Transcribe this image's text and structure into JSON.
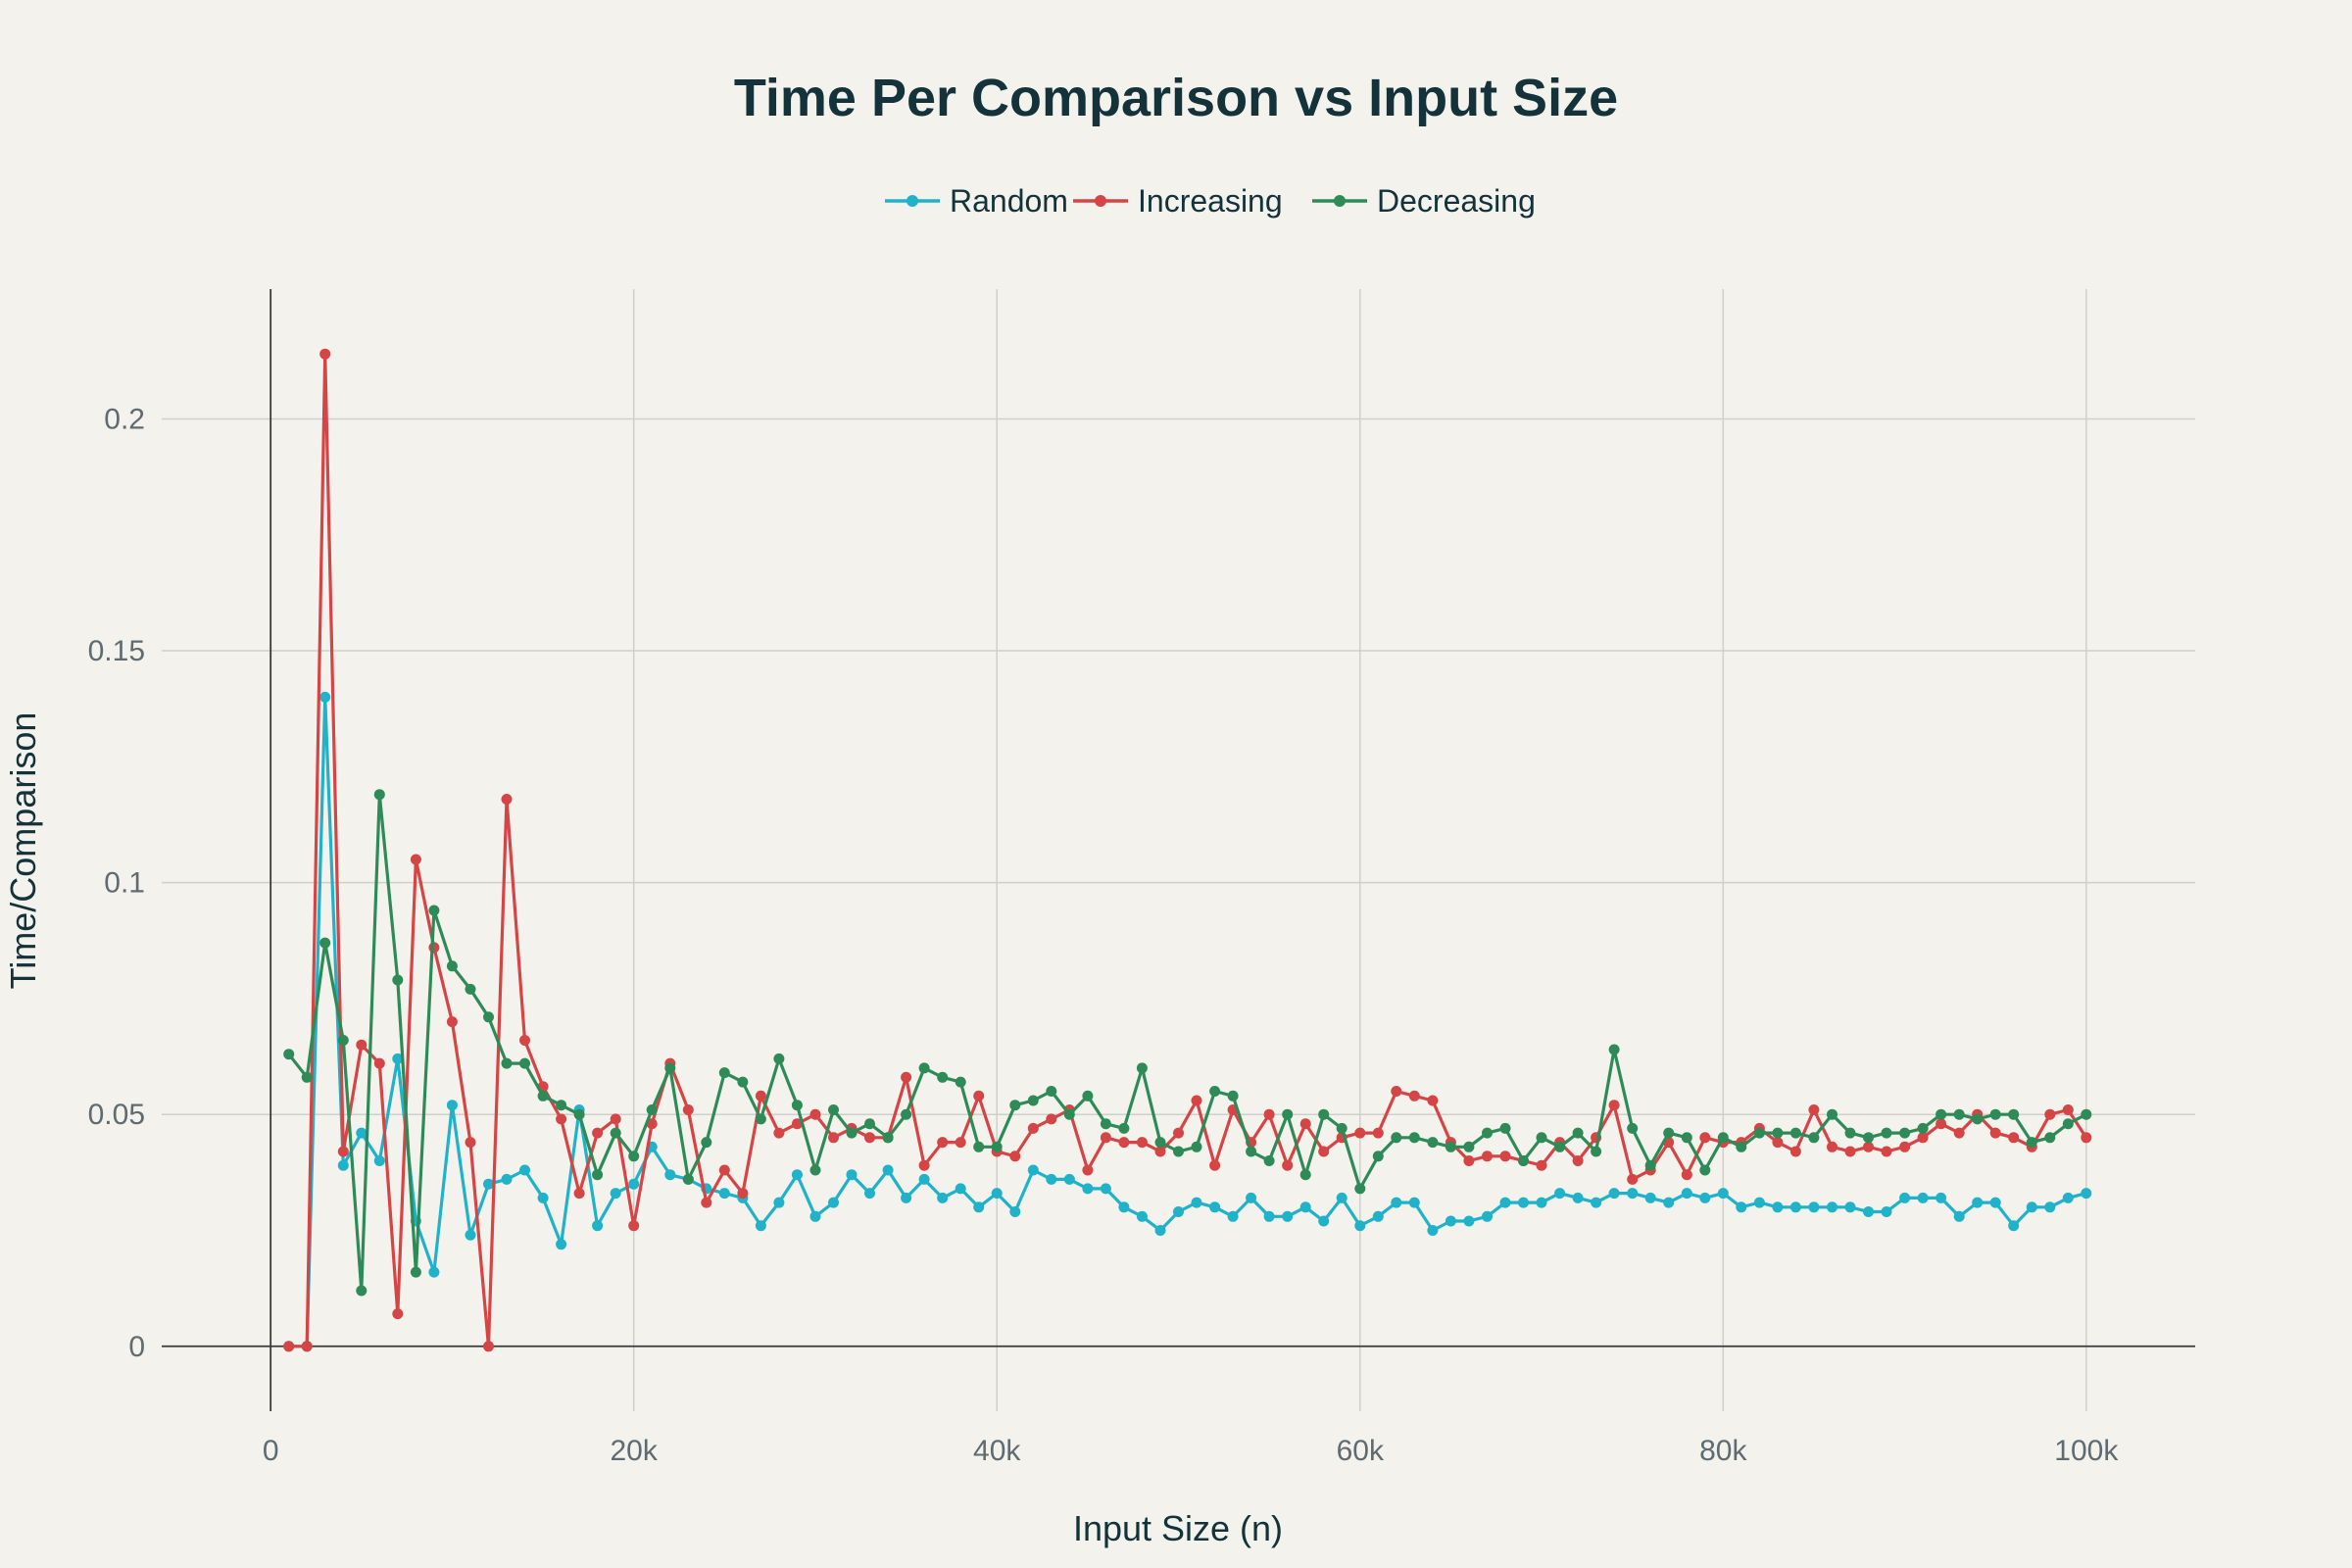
{
  "chart_data": {
    "type": "line",
    "title": "Time Per Comparison vs Input Size",
    "xlabel": "Input Size (n)",
    "ylabel": "Time/Comparison",
    "xlim": [
      -6000,
      106000
    ],
    "ylim": [
      -0.014,
      0.228
    ],
    "x_ticks": [
      0,
      20000,
      40000,
      60000,
      80000,
      100000
    ],
    "x_tick_labels": [
      "0",
      "20k",
      "40k",
      "60k",
      "80k",
      "100k"
    ],
    "y_ticks": [
      0,
      0.05,
      0.1,
      0.15,
      0.2
    ],
    "y_tick_labels": [
      "0",
      "0.05",
      "0.1",
      "0.15",
      "0.2"
    ],
    "grid": true,
    "legend_position": "top-center",
    "x": [
      1000,
      2000,
      3000,
      4000,
      5000,
      6000,
      7000,
      8000,
      9000,
      10000,
      11000,
      12000,
      13000,
      14000,
      15000,
      16000,
      17000,
      18000,
      19000,
      20000,
      21000,
      22000,
      23000,
      24000,
      25000,
      26000,
      27000,
      28000,
      29000,
      30000,
      31000,
      32000,
      33000,
      34000,
      35000,
      36000,
      37000,
      38000,
      39000,
      40000,
      41000,
      42000,
      43000,
      44000,
      45000,
      46000,
      47000,
      48000,
      49000,
      50000,
      51000,
      52000,
      53000,
      54000,
      55000,
      56000,
      57000,
      58000,
      59000,
      60000,
      61000,
      62000,
      63000,
      64000,
      65000,
      66000,
      67000,
      68000,
      69000,
      70000,
      71000,
      72000,
      73000,
      74000,
      75000,
      76000,
      77000,
      78000,
      79000,
      80000,
      81000,
      82000,
      83000,
      84000,
      85000,
      86000,
      87000,
      88000,
      89000,
      90000,
      91000,
      92000,
      93000,
      94000,
      95000,
      96000,
      97000,
      98000,
      99000,
      100000
    ],
    "series": [
      {
        "name": "Random",
        "color": "#1fb2c9",
        "values": [
          0,
          0,
          0.14,
          0.039,
          0.046,
          0.04,
          0.062,
          0.027,
          0.016,
          0.052,
          0.024,
          0.035,
          0.036,
          0.038,
          0.032,
          0.022,
          0.051,
          0.026,
          0.033,
          0.035,
          0.043,
          0.037,
          0.036,
          0.034,
          0.033,
          0.032,
          0.026,
          0.031,
          0.037,
          0.028,
          0.031,
          0.037,
          0.033,
          0.038,
          0.032,
          0.036,
          0.032,
          0.034,
          0.03,
          0.033,
          0.029,
          0.038,
          0.036,
          0.036,
          0.034,
          0.034,
          0.03,
          0.028,
          0.025,
          0.029,
          0.031,
          0.03,
          0.028,
          0.032,
          0.028,
          0.028,
          0.03,
          0.027,
          0.032,
          0.026,
          0.028,
          0.031,
          0.031,
          0.025,
          0.027,
          0.027,
          0.028,
          0.031,
          0.031,
          0.031,
          0.033,
          0.032,
          0.031,
          0.033,
          0.033,
          0.032,
          0.031,
          0.033,
          0.032,
          0.033,
          0.03,
          0.031,
          0.03,
          0.03,
          0.03,
          0.03,
          0.03,
          0.029,
          0.029,
          0.032,
          0.032,
          0.032,
          0.028,
          0.031,
          0.031,
          0.026,
          0.03,
          0.03,
          0.032,
          0.033
        ]
      },
      {
        "name": "Increasing",
        "color": "#d64545",
        "values": [
          0,
          0,
          0.214,
          0.042,
          0.065,
          0.061,
          0.007,
          0.105,
          0.086,
          0.07,
          0.044,
          0,
          0.118,
          0.066,
          0.056,
          0.049,
          0.033,
          0.046,
          0.049,
          0.026,
          0.048,
          0.061,
          0.051,
          0.031,
          0.038,
          0.033,
          0.054,
          0.046,
          0.048,
          0.05,
          0.045,
          0.047,
          0.045,
          0.045,
          0.058,
          0.039,
          0.044,
          0.044,
          0.054,
          0.042,
          0.041,
          0.047,
          0.049,
          0.051,
          0.038,
          0.045,
          0.044,
          0.044,
          0.042,
          0.046,
          0.053,
          0.039,
          0.051,
          0.044,
          0.05,
          0.039,
          0.048,
          0.042,
          0.045,
          0.046,
          0.046,
          0.055,
          0.054,
          0.053,
          0.044,
          0.04,
          0.041,
          0.041,
          0.04,
          0.039,
          0.044,
          0.04,
          0.045,
          0.052,
          0.036,
          0.038,
          0.044,
          0.037,
          0.045,
          0.044,
          0.044,
          0.047,
          0.044,
          0.042,
          0.051,
          0.043,
          0.042,
          0.043,
          0.042,
          0.043,
          0.045,
          0.048,
          0.046,
          0.05,
          0.046,
          0.045,
          0.043,
          0.05,
          0.051,
          0.045
        ]
      },
      {
        "name": "Decreasing",
        "color": "#2e8b57",
        "values": [
          0.063,
          0.058,
          0.087,
          0.066,
          0.012,
          0.119,
          0.079,
          0.016,
          0.094,
          0.082,
          0.077,
          0.071,
          0.061,
          0.061,
          0.054,
          0.052,
          0.05,
          0.037,
          0.046,
          0.041,
          0.051,
          0.06,
          0.036,
          0.044,
          0.059,
          0.057,
          0.049,
          0.062,
          0.052,
          0.038,
          0.051,
          0.046,
          0.048,
          0.045,
          0.05,
          0.06,
          0.058,
          0.057,
          0.043,
          0.043,
          0.052,
          0.053,
          0.055,
          0.05,
          0.054,
          0.048,
          0.047,
          0.06,
          0.044,
          0.042,
          0.043,
          0.055,
          0.054,
          0.042,
          0.04,
          0.05,
          0.037,
          0.05,
          0.047,
          0.034,
          0.041,
          0.045,
          0.045,
          0.044,
          0.043,
          0.043,
          0.046,
          0.047,
          0.04,
          0.045,
          0.043,
          0.046,
          0.042,
          0.064,
          0.047,
          0.039,
          0.046,
          0.045,
          0.038,
          0.045,
          0.043,
          0.046,
          0.046,
          0.046,
          0.045,
          0.05,
          0.046,
          0.045,
          0.046,
          0.046,
          0.047,
          0.05,
          0.05,
          0.049,
          0.05,
          0.05,
          0.044,
          0.045,
          0.048,
          0.05
        ]
      }
    ]
  }
}
